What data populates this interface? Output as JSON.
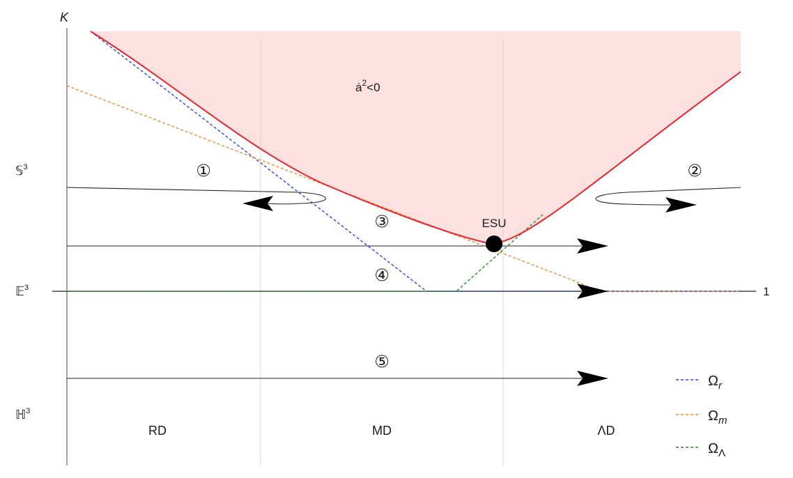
{
  "axis": {
    "y_label": "K",
    "right_label": "1"
  },
  "geometry_labels": {
    "sphere": "𝕊",
    "flat": "𝔼",
    "hyperbolic": "ℍ",
    "superscript": "3"
  },
  "forbidden_region": {
    "label_a": "ȧ",
    "label_sup": "2",
    "label_rest": "<0",
    "fill_color": "#fde0e0",
    "boundary_color": "#e8232a"
  },
  "special_point": {
    "label": "ESU"
  },
  "trajectories": [
    {
      "marker": "①"
    },
    {
      "marker": "②"
    },
    {
      "marker": "③"
    },
    {
      "marker": "④"
    },
    {
      "marker": "⑤"
    }
  ],
  "eras": [
    "RD",
    "MD",
    "ΛD"
  ],
  "legend": [
    {
      "symbol": "Ω",
      "sub": "r",
      "color": "#2b3fe8"
    },
    {
      "symbol": "Ω",
      "sub": "m",
      "color": "#ef8a2c"
    },
    {
      "symbol": "Ω",
      "sub": "Λ",
      "color": "#2a8a2a"
    }
  ]
}
